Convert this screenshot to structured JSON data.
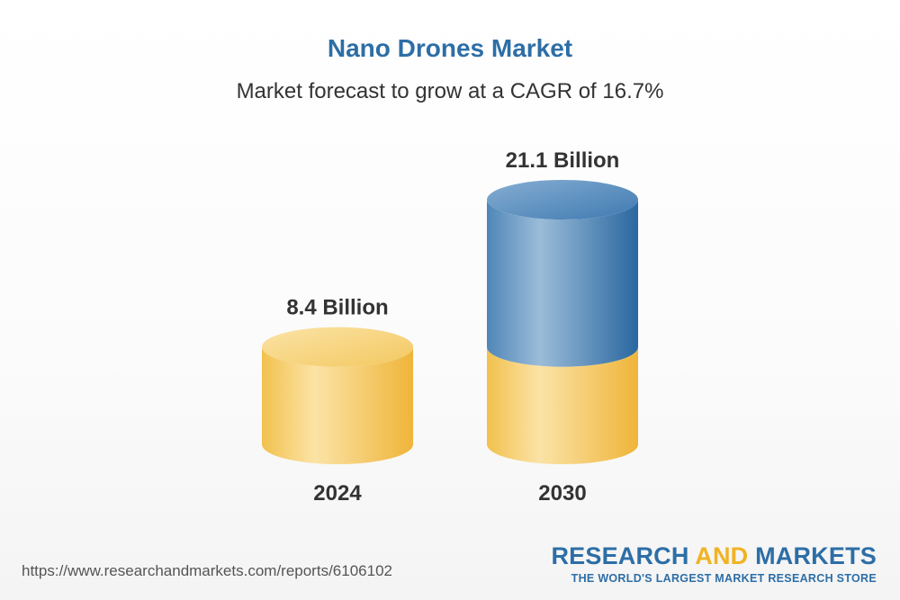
{
  "chart_data": {
    "type": "bar",
    "title": "Nano Drones Market",
    "subtitle": "Market forecast to grow at a CAGR of 16.7%",
    "categories": [
      "2024",
      "2030"
    ],
    "values": [
      8.4,
      21.1
    ],
    "data_labels": [
      "8.4 Billion",
      "21.1 Billion"
    ],
    "colors": {
      "base": "#f2c14e",
      "base_highlight": "#fbe3a6",
      "growth": "#2e6da4",
      "growth_highlight": "#9bbcd8"
    }
  },
  "footer": {
    "url": "https://www.researchandmarkets.com/reports/6106102",
    "logo_part1": "RESEARCH ",
    "logo_part2": "AND",
    "logo_part3": " MARKETS",
    "tagline": "THE WORLD'S LARGEST MARKET RESEARCH STORE"
  }
}
